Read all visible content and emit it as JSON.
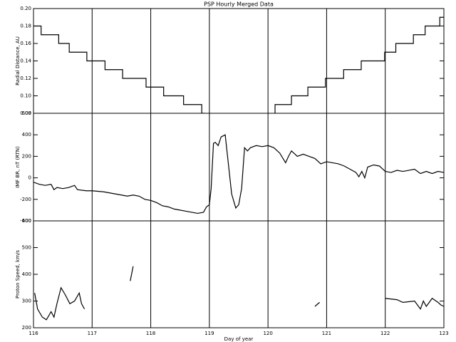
{
  "chart_data": [
    {
      "type": "line",
      "title": "PSP Hourly Merged Data",
      "ylabel": "Radial Distance, AU",
      "color": "#000000",
      "grid": true,
      "xlim": [
        116,
        123
      ],
      "xticks": [
        116,
        117,
        118,
        119,
        120,
        121,
        122,
        123
      ],
      "ylim": [
        0.08,
        0.2
      ],
      "yticks": [
        0.08,
        {
          "value": 0.1,
          "label": "0.10"
        },
        0.12,
        0.14,
        0.16,
        0.18,
        {
          "value": 0.2,
          "label": "0.20"
        }
      ],
      "x": [
        116,
        116.13,
        116.13,
        116.43,
        116.43,
        116.61,
        116.61,
        116.91,
        116.91,
        117.22,
        117.22,
        117.52,
        117.52,
        117.92,
        117.92,
        118.22,
        118.22,
        118.56,
        118.56,
        118.87,
        118.87,
        118.92,
        119.5,
        120.12,
        120.12,
        120.4,
        120.4,
        120.68,
        120.68,
        120.98,
        120.98,
        121.29,
        121.29,
        121.59,
        121.59,
        121.99,
        121.99,
        122.18,
        122.18,
        122.48,
        122.48,
        122.68,
        122.68,
        122.93,
        122.93,
        123
      ],
      "values": [
        0.18,
        0.18,
        0.17,
        0.17,
        0.16,
        0.16,
        0.15,
        0.15,
        0.14,
        0.14,
        0.13,
        0.13,
        0.12,
        0.12,
        0.11,
        0.11,
        0.1,
        0.1,
        0.09,
        0.09,
        0.08,
        0.08,
        null,
        0.08,
        0.09,
        0.09,
        0.1,
        0.1,
        0.11,
        0.11,
        0.12,
        0.12,
        0.13,
        0.13,
        0.14,
        0.14,
        0.15,
        0.15,
        0.16,
        0.16,
        0.17,
        0.17,
        0.18,
        0.18,
        0.19,
        0.19
      ]
    },
    {
      "type": "line",
      "ylabel": "IMF BR, nT (RTN)",
      "color": "#000000",
      "grid": true,
      "xlim": [
        116,
        123
      ],
      "xticks": [
        116,
        117,
        118,
        119,
        120,
        121,
        122,
        123
      ],
      "ylim": [
        -400,
        600
      ],
      "yticks": [
        -400,
        -200,
        0,
        200,
        400,
        600
      ],
      "x": [
        116.0,
        116.1,
        116.2,
        116.3,
        116.35,
        116.4,
        116.5,
        116.6,
        116.7,
        116.75,
        116.9,
        117.0,
        117.2,
        117.4,
        117.6,
        117.7,
        117.8,
        117.9,
        118.0,
        118.1,
        118.2,
        118.3,
        118.4,
        118.5,
        118.6,
        118.7,
        118.8,
        118.9,
        118.95,
        119.0,
        119.03,
        119.07,
        119.1,
        119.15,
        119.2,
        119.27,
        119.32,
        119.38,
        119.45,
        119.5,
        119.55,
        119.6,
        119.65,
        119.7,
        119.8,
        119.9,
        120.0,
        120.1,
        120.2,
        120.3,
        120.35,
        120.4,
        120.5,
        120.6,
        120.7,
        120.8,
        120.9,
        121.0,
        121.1,
        121.2,
        121.3,
        121.4,
        121.5,
        121.55,
        121.6,
        121.65,
        121.7,
        121.8,
        121.9,
        122.0,
        122.1,
        122.2,
        122.3,
        122.4,
        122.5,
        122.6,
        122.7,
        122.8,
        122.9,
        123.0
      ],
      "values": [
        -40,
        -60,
        -70,
        -60,
        -110,
        -90,
        -100,
        -90,
        -70,
        -110,
        -120,
        -120,
        -130,
        -150,
        -170,
        -160,
        -170,
        -200,
        -210,
        -230,
        -260,
        -270,
        -290,
        -300,
        -310,
        -320,
        -330,
        -320,
        -270,
        -250,
        -100,
        320,
        330,
        300,
        380,
        400,
        150,
        -150,
        -280,
        -250,
        -100,
        280,
        250,
        280,
        300,
        290,
        300,
        280,
        230,
        140,
        200,
        250,
        200,
        220,
        200,
        180,
        130,
        150,
        140,
        130,
        110,
        80,
        50,
        10,
        60,
        0,
        100,
        120,
        110,
        60,
        50,
        70,
        60,
        70,
        80,
        40,
        60,
        40,
        60,
        50
      ]
    },
    {
      "type": "line",
      "ylabel": "Proton Speed, km/s",
      "xlabel": "Day of year",
      "color": "#000000",
      "grid": true,
      "xlim": [
        116,
        123
      ],
      "xticks": [
        116,
        117,
        118,
        119,
        120,
        121,
        122,
        123
      ],
      "ylim": [
        200,
        600
      ],
      "yticks": [
        200,
        300,
        400,
        500,
        600
      ],
      "x": [
        116.02,
        116.07,
        116.15,
        116.22,
        116.3,
        116.35,
        116.4,
        116.47,
        116.55,
        116.62,
        116.7,
        116.78,
        116.82,
        116.87,
        117.3,
        117.65,
        117.7,
        120.2,
        120.8,
        120.88,
        121.5,
        122.0,
        122.2,
        122.3,
        122.5,
        122.6,
        122.65,
        122.7,
        122.8,
        122.9,
        122.95,
        123.0
      ],
      "values": [
        330,
        270,
        240,
        230,
        260,
        240,
        290,
        350,
        320,
        290,
        300,
        330,
        290,
        270,
        null,
        375,
        430,
        null,
        280,
        295,
        null,
        310,
        305,
        295,
        300,
        270,
        300,
        280,
        310,
        295,
        285,
        280
      ]
    }
  ]
}
